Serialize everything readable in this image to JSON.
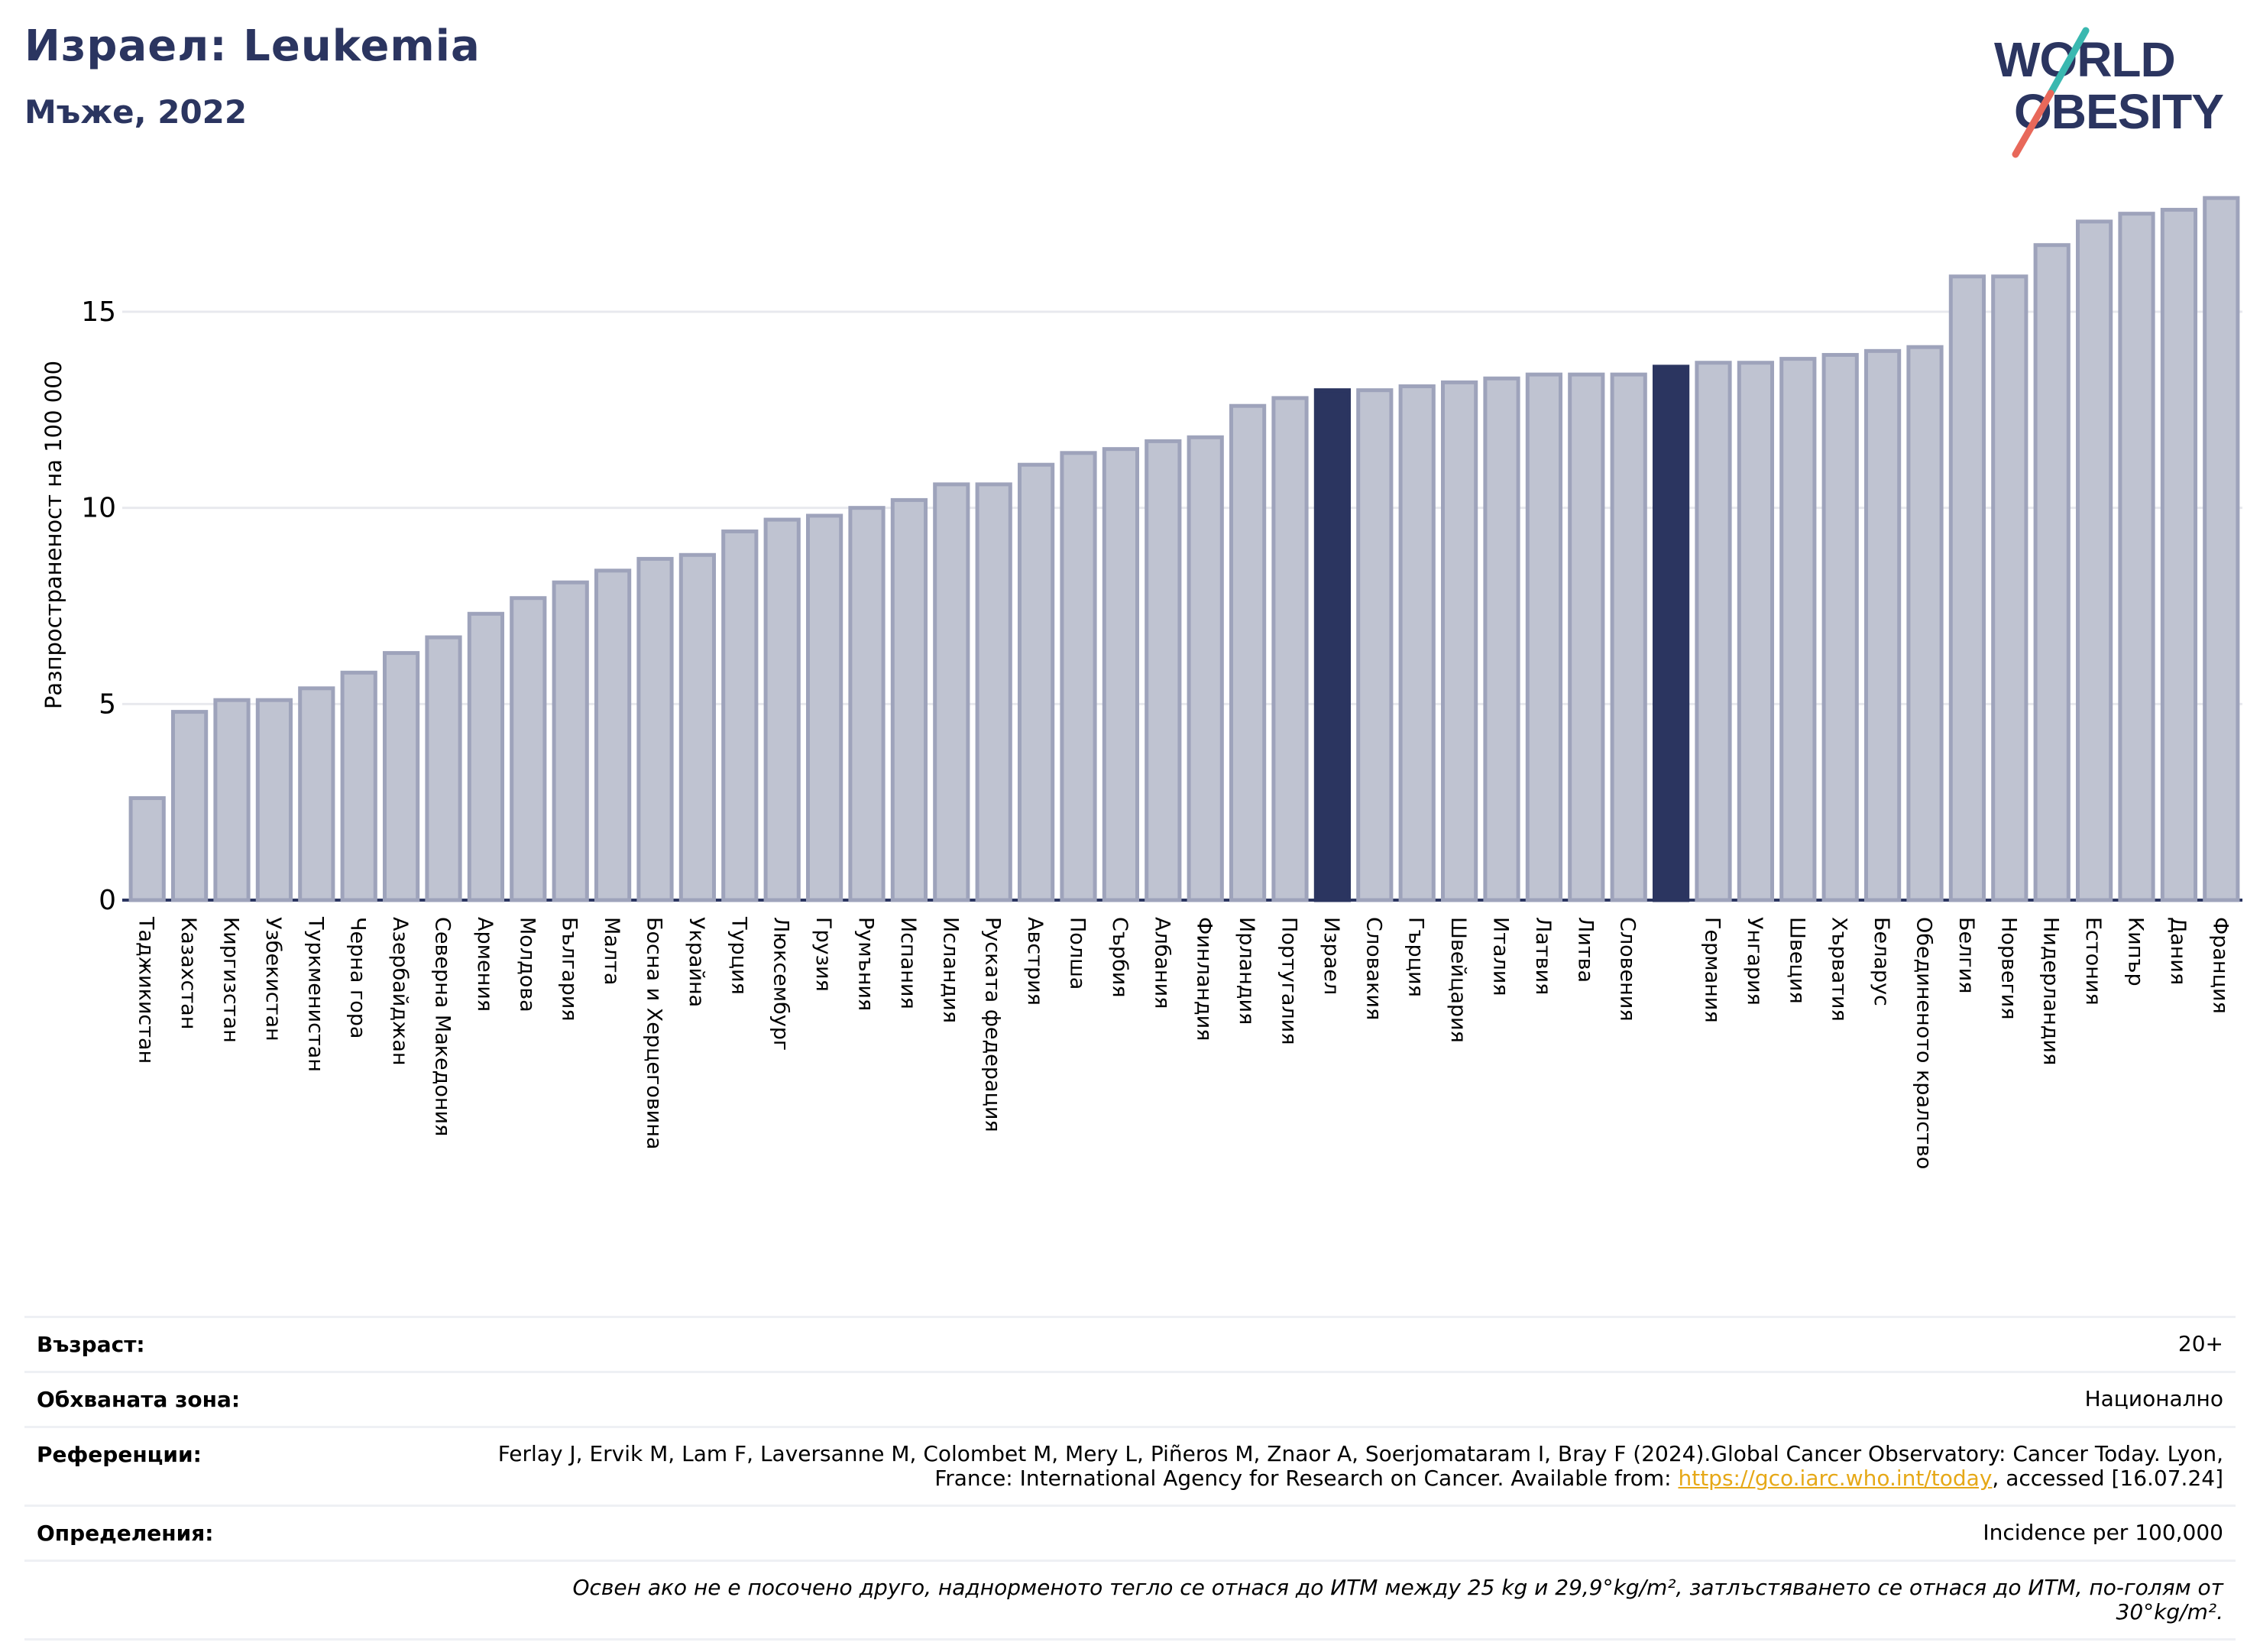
{
  "header": {
    "title": "Израел: Leukemia",
    "subtitle": "Мъже, 2022"
  },
  "logo": {
    "line1": "WORLD",
    "line2": "OBESITY"
  },
  "colors": {
    "bar": "#bfc3d1",
    "bar_stroke": "#9ea3bb",
    "highlight": "#2b3560",
    "title": "#2b3560",
    "grid": "#e8e9ee"
  },
  "chart_data": {
    "type": "bar",
    "ylabel": "Разпространеност  на 100 000",
    "ylim": [
      0,
      18.5
    ],
    "yticks": [
      0,
      5,
      10,
      15
    ],
    "grid": "horizontal",
    "categories": [
      "Таджикистан",
      "Казахстан",
      "Киргизстан",
      "Узбекистан",
      "Туркменистан",
      "Черна гора",
      "Азербайджан",
      "Северна Македония",
      "Армения",
      "Молдова",
      "България",
      "Малта",
      "Босна и Херцеговина",
      "Украйна",
      "Турция",
      "Люксембург",
      "Грузия",
      "Румъния",
      "Испания",
      "Исландия",
      "Руската федерация",
      "Австрия",
      "Полша",
      "Сърбия",
      "Албания",
      "Финландия",
      "Ирландия",
      "Португалия",
      "Израел",
      "Словакия",
      "Гърция",
      "Швейцария",
      "Италия",
      "Латвия",
      "Литва",
      "Словения",
      "",
      "Германия",
      "Унгария",
      "Швеция",
      "Хърватия",
      "Беларус",
      "Обединеното кралство",
      "Белгия",
      "Норвегия",
      "Нидерландия",
      "Естония",
      "Кипър",
      "Дания",
      "Франция"
    ],
    "values": [
      2.6,
      4.8,
      5.1,
      5.1,
      5.4,
      5.8,
      6.3,
      6.7,
      7.3,
      7.7,
      8.1,
      8.4,
      8.7,
      8.8,
      9.4,
      9.7,
      9.8,
      10.0,
      10.2,
      10.6,
      10.6,
      11.1,
      11.4,
      11.5,
      11.7,
      11.8,
      12.6,
      12.8,
      13.0,
      13.0,
      13.1,
      13.2,
      13.3,
      13.4,
      13.4,
      13.4,
      13.6,
      13.7,
      13.7,
      13.8,
      13.9,
      14.0,
      14.1,
      15.9,
      15.9,
      16.7,
      17.3,
      17.5,
      17.6,
      17.9
    ],
    "highlighted": [
      28,
      36
    ]
  },
  "info": {
    "age_label": "Възраст:",
    "age_value": "20+",
    "area_label": "Обхваната зона:",
    "area_value": "Национално",
    "ref_label": "Референции:",
    "ref_text_1": "Ferlay J, Ervik M, Lam F, Laversanne M, Colombet M, Mery L, Piñeros M, Znaor A, Soerjomataram I, Bray F (2024).Global Cancer Observatory: Cancer Today. Lyon, France: International Agency for Research on Cancer. Available from: ",
    "ref_link": "https://gco.iarc.who.int/today",
    "ref_text_2": ", accessed [16.07.24]",
    "def_label": "Определения:",
    "def_value": "Incidence per 100,000",
    "note": "Освен ако не е посочено друго, наднорменото тегло се отнася до ИТМ между 25 kg и 29,9°kg/m², затлъстяването се отнася до ИТМ, по-голям от 30°kg/m²."
  }
}
